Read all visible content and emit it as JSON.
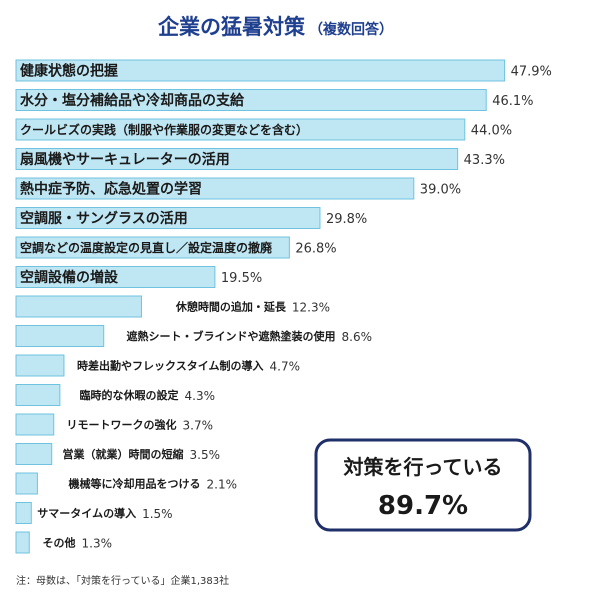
{
  "chart_data": {
    "type": "bar",
    "orientation": "horizontal",
    "title": "企業の猛暑対策",
    "subtitle": "（複数回答）",
    "categories": [
      "健康状態の把握",
      "水分・塩分補給品や冷却商品の支給",
      "クールビズの実践（制服や作業服の変更などを含む）",
      "扇風機やサーキュレーターの活用",
      "熱中症予防、応急処置の学習",
      "空調服・サングラスの活用",
      "空調などの温度設定の見直し／設定温度の撤廃",
      "空調設備の増設",
      "休憩時間の追加・延長",
      "遮熱シート・ブラインドや遮熱塗装の使用",
      "時差出勤やフレックスタイム制の導入",
      "臨時的な休暇の設定",
      "リモートワークの強化",
      "営業（就業）時間の短縮",
      "機械等に冷却用品をつける",
      "サマータイムの導入",
      "その他"
    ],
    "values": [
      47.9,
      46.1,
      44.0,
      43.3,
      39.0,
      29.8,
      26.8,
      19.5,
      12.3,
      8.6,
      4.7,
      4.3,
      3.7,
      3.5,
      2.1,
      1.5,
      1.3
    ],
    "value_labels": [
      "47.9%",
      "46.1%",
      "44.0%",
      "43.3%",
      "39.0%",
      "29.8%",
      "26.8%",
      "19.5%",
      "12.3%",
      "8.6%",
      "4.7%",
      "4.3%",
      "3.7%",
      "3.5%",
      "2.1%",
      "1.5%",
      "1.3%"
    ],
    "xlim": [
      0,
      50
    ],
    "grid": false,
    "legend": "none",
    "colors": {
      "bar_fill": "#bfe6f3",
      "bar_stroke": "#6fc3df",
      "title": "#1f3f8f",
      "callout_border": "#1f2f6a"
    },
    "callout": {
      "label": "対策を行っている",
      "value": "89.7%"
    },
    "note": "注：母数は、「対策を行っている」企業1,383社"
  }
}
